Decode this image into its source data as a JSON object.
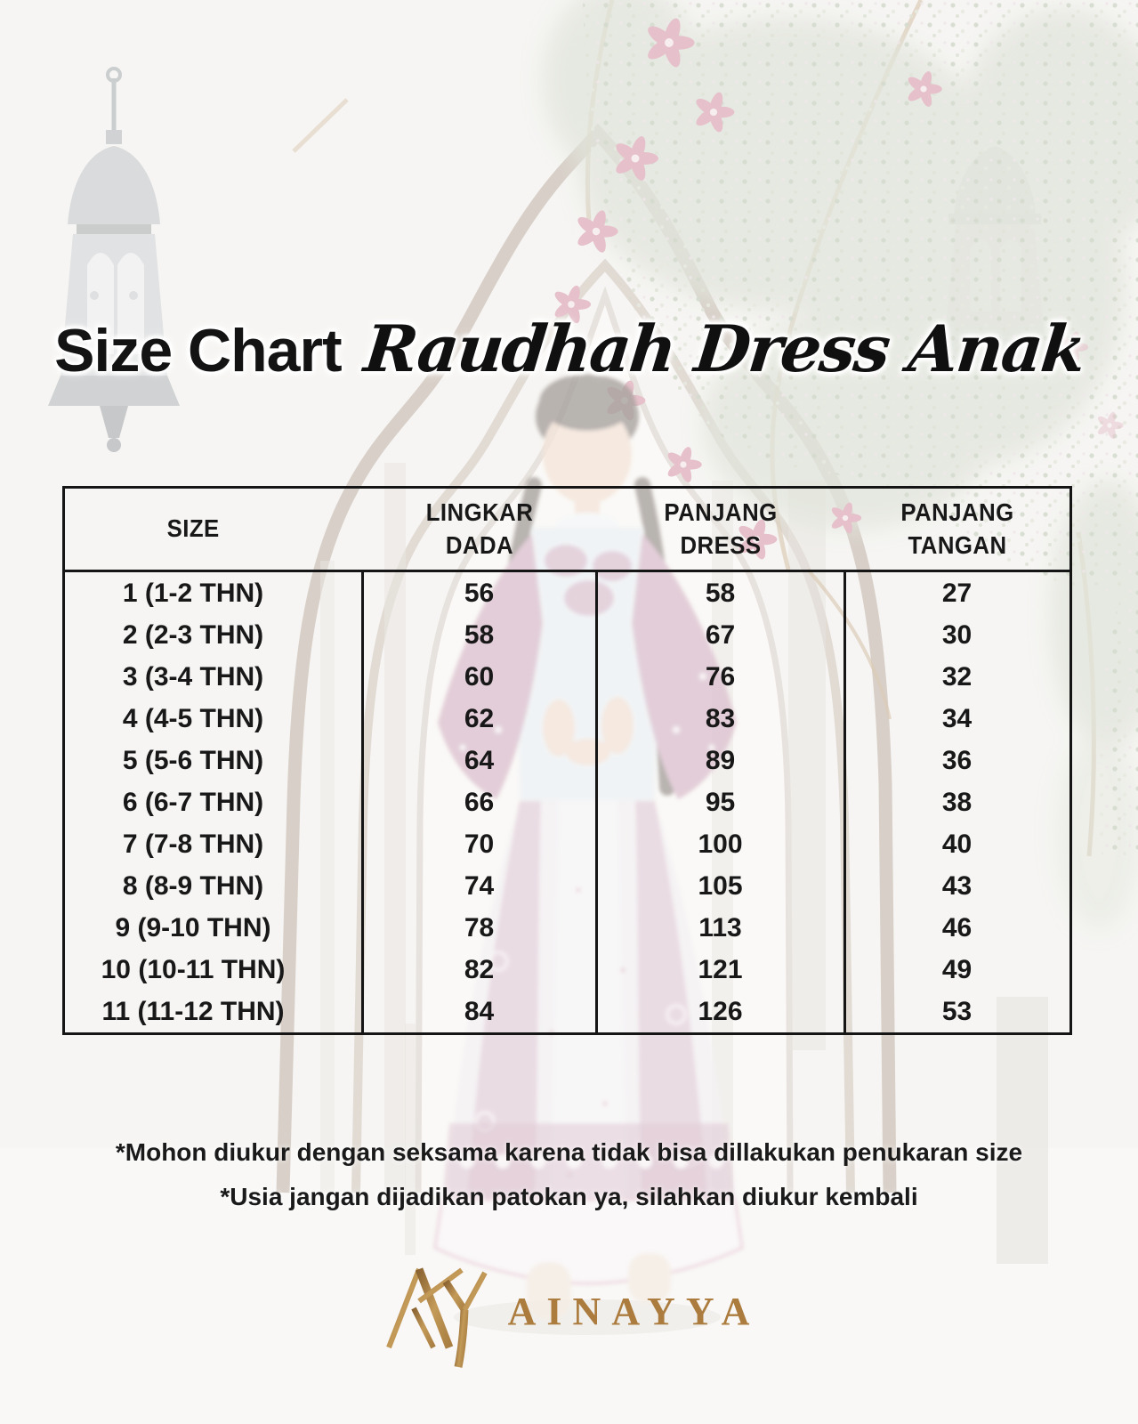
{
  "title": {
    "main": "Size Chart",
    "script": "Raudhah Dress Anak"
  },
  "table": {
    "headers": [
      "SIZE",
      "LINGKAR DADA",
      "PANJANG DRESS",
      "PANJANG TANGAN"
    ],
    "rows": [
      {
        "size": "1 (1-2 THN)",
        "lingkar_dada": "56",
        "panjang_dress": "58",
        "panjang_tangan": "27"
      },
      {
        "size": "2 (2-3 THN)",
        "lingkar_dada": "58",
        "panjang_dress": "67",
        "panjang_tangan": "30"
      },
      {
        "size": "3 (3-4 THN)",
        "lingkar_dada": "60",
        "panjang_dress": "76",
        "panjang_tangan": "32"
      },
      {
        "size": "4 (4-5 THN)",
        "lingkar_dada": "62",
        "panjang_dress": "83",
        "panjang_tangan": "34"
      },
      {
        "size": "5 (5-6 THN)",
        "lingkar_dada": "64",
        "panjang_dress": "89",
        "panjang_tangan": "36"
      },
      {
        "size": "6 (6-7 THN)",
        "lingkar_dada": "66",
        "panjang_dress": "95",
        "panjang_tangan": "38"
      },
      {
        "size": "7 (7-8 THN)",
        "lingkar_dada": "70",
        "panjang_dress": "100",
        "panjang_tangan": "40"
      },
      {
        "size": "8 (8-9 THN)",
        "lingkar_dada": "74",
        "panjang_dress": "105",
        "panjang_tangan": "43"
      },
      {
        "size": "9 (9-10 THN)",
        "lingkar_dada": "78",
        "panjang_dress": "113",
        "panjang_tangan": "46"
      },
      {
        "size": "10 (10-11 THN)",
        "lingkar_dada": "82",
        "panjang_dress": "121",
        "panjang_tangan": "49"
      },
      {
        "size": "11 (11-12 THN)",
        "lingkar_dada": "84",
        "panjang_dress": "126",
        "panjang_tangan": "53"
      }
    ]
  },
  "notes": [
    "*Mohon diukur dengan seksama karena tidak bisa dillakukan penukaran size",
    "*Usia jangan dijadikan patokan ya, silahkan diukur kembali"
  ],
  "brand": {
    "wordmark": "AINAYYA"
  },
  "colors": {
    "text": "#151515",
    "table_border": "#151515",
    "gold": "#ab7c3e",
    "background": "#f0eeea",
    "orchid_pink": "#d495a6",
    "dress_mauve": "#c497ae"
  },
  "chart_data": {
    "type": "table",
    "title": "Size Chart Raudhah Dress Anak",
    "columns": [
      "SIZE",
      "LINGKAR DADA",
      "PANJANG DRESS",
      "PANJANG TANGAN"
    ],
    "rows": [
      [
        "1 (1-2 THN)",
        56,
        58,
        27
      ],
      [
        "2 (2-3 THN)",
        58,
        67,
        30
      ],
      [
        "3 (3-4 THN)",
        60,
        76,
        32
      ],
      [
        "4 (4-5 THN)",
        62,
        83,
        34
      ],
      [
        "5 (5-6 THN)",
        64,
        89,
        36
      ],
      [
        "6 (6-7 THN)",
        66,
        95,
        38
      ],
      [
        "7 (7-8 THN)",
        70,
        100,
        40
      ],
      [
        "8 (8-9 THN)",
        74,
        105,
        43
      ],
      [
        "9 (9-10 THN)",
        78,
        113,
        46
      ],
      [
        "10 (10-11 THN)",
        82,
        121,
        49
      ],
      [
        "11 (11-12 THN)",
        84,
        126,
        53
      ]
    ]
  }
}
